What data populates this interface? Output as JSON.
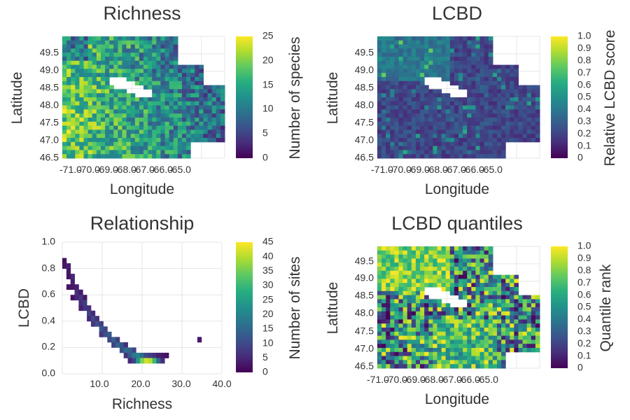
{
  "figure": {
    "panels": [
      {
        "title": "Richness",
        "xlabel": "Longitude",
        "ylabel": "Latitude",
        "x_ticks": [
          "-71.0",
          "-70.0",
          "-69.0",
          "-68.0",
          "-67.0",
          "-66.0",
          "-65.0"
        ],
        "y_ticks": [
          "46.5",
          "47.0",
          "47.5",
          "48.0",
          "48.5",
          "49.0",
          "49.5"
        ],
        "colorbar": {
          "label": "Number of species",
          "ticks": [
            "0",
            "5",
            "10",
            "15",
            "20",
            "25"
          ]
        }
      },
      {
        "title": "LCBD",
        "xlabel": "Longitude",
        "ylabel": "Latitude",
        "x_ticks": [
          "-71.0",
          "-70.0",
          "-69.0",
          "-68.0",
          "-67.0",
          "-66.0",
          "-65.0"
        ],
        "y_ticks": [
          "46.5",
          "47.0",
          "47.5",
          "48.0",
          "48.5",
          "49.0",
          "49.5"
        ],
        "colorbar": {
          "label": "Relative LCBD score",
          "ticks": [
            "0",
            "0.1",
            "0.2",
            "0.3",
            "0.4",
            "0.5",
            "0.6",
            "0.7",
            "0.8",
            "0.9",
            "1.0"
          ]
        }
      },
      {
        "title": "Relationship",
        "xlabel": "Richness",
        "ylabel": "LCBD",
        "x_ticks": [
          "10.0",
          "20.0",
          "30.0",
          "40.0"
        ],
        "y_ticks": [
          "0.0",
          "0.2",
          "0.4",
          "0.6",
          "0.8",
          "1.0"
        ],
        "colorbar": {
          "label": "Number of sites",
          "ticks": [
            "0",
            "5",
            "10",
            "15",
            "20",
            "25",
            "30",
            "35",
            "40",
            "45"
          ]
        }
      },
      {
        "title": "LCBD quantiles",
        "xlabel": "Longitude",
        "ylabel": "Latitude",
        "x_ticks": [
          "-71.0",
          "-70.0",
          "-69.0",
          "-68.0",
          "-67.0",
          "-66.0",
          "-65.0"
        ],
        "y_ticks": [
          "46.5",
          "47.0",
          "47.5",
          "48.0",
          "48.5",
          "49.0",
          "49.5"
        ],
        "colorbar": {
          "label": "Quantile rank",
          "ticks": [
            "0",
            "0.1",
            "0.2",
            "0.3",
            "0.4",
            "0.5",
            "0.6",
            "0.7",
            "0.8",
            "0.9",
            "1.0"
          ]
        }
      }
    ]
  },
  "chart_data": [
    {
      "type": "heatmap",
      "title": "Richness",
      "xlabel": "Longitude",
      "ylabel": "Latitude",
      "xlim": [
        -71.2,
        -64.2
      ],
      "ylim": [
        46.45,
        49.95
      ],
      "colormap": "viridis",
      "clim": [
        0,
        25
      ],
      "colorbar_label": "Number of species",
      "grid": true,
      "ncols": 38,
      "nrows": 30
    },
    {
      "type": "heatmap",
      "title": "LCBD",
      "xlabel": "Longitude",
      "ylabel": "Latitude",
      "xlim": [
        -71.2,
        -64.2
      ],
      "ylim": [
        46.45,
        49.95
      ],
      "colormap": "viridis",
      "clim": [
        0,
        1
      ],
      "colorbar_label": "Relative LCBD score",
      "grid": true,
      "ncols": 38,
      "nrows": 30
    },
    {
      "type": "heatmap",
      "title": "Relationship",
      "xlabel": "Richness",
      "ylabel": "LCBD",
      "xlim": [
        1,
        40
      ],
      "ylim": [
        0,
        1
      ],
      "colormap": "viridis",
      "clim": [
        0,
        45
      ],
      "colorbar_label": "Number of sites",
      "grid": true,
      "bins": [
        {
          "x": 1,
          "y": 0.86,
          "v": 2
        },
        {
          "x": 1,
          "y": 0.82,
          "v": 3
        },
        {
          "x": 2,
          "y": 0.82,
          "v": 4
        },
        {
          "x": 2,
          "y": 0.78,
          "v": 3
        },
        {
          "x": 2,
          "y": 0.74,
          "v": 2
        },
        {
          "x": 3,
          "y": 0.74,
          "v": 5
        },
        {
          "x": 3,
          "y": 0.7,
          "v": 4
        },
        {
          "x": 2,
          "y": 0.66,
          "v": 2
        },
        {
          "x": 3,
          "y": 0.66,
          "v": 3
        },
        {
          "x": 4,
          "y": 0.66,
          "v": 4
        },
        {
          "x": 4,
          "y": 0.62,
          "v": 6
        },
        {
          "x": 5,
          "y": 0.62,
          "v": 3
        },
        {
          "x": 3,
          "y": 0.58,
          "v": 2
        },
        {
          "x": 4,
          "y": 0.58,
          "v": 5
        },
        {
          "x": 5,
          "y": 0.58,
          "v": 7
        },
        {
          "x": 6,
          "y": 0.58,
          "v": 3
        },
        {
          "x": 5,
          "y": 0.54,
          "v": 6
        },
        {
          "x": 6,
          "y": 0.54,
          "v": 8
        },
        {
          "x": 5,
          "y": 0.5,
          "v": 4
        },
        {
          "x": 6,
          "y": 0.5,
          "v": 7
        },
        {
          "x": 7,
          "y": 0.5,
          "v": 6
        },
        {
          "x": 7,
          "y": 0.46,
          "v": 9
        },
        {
          "x": 8,
          "y": 0.46,
          "v": 5
        },
        {
          "x": 7,
          "y": 0.42,
          "v": 5
        },
        {
          "x": 8,
          "y": 0.42,
          "v": 10
        },
        {
          "x": 9,
          "y": 0.42,
          "v": 6
        },
        {
          "x": 8,
          "y": 0.38,
          "v": 7
        },
        {
          "x": 9,
          "y": 0.38,
          "v": 11
        },
        {
          "x": 10,
          "y": 0.38,
          "v": 8
        },
        {
          "x": 10,
          "y": 0.34,
          "v": 12
        },
        {
          "x": 11,
          "y": 0.34,
          "v": 9
        },
        {
          "x": 10,
          "y": 0.3,
          "v": 7
        },
        {
          "x": 11,
          "y": 0.3,
          "v": 11
        },
        {
          "x": 12,
          "y": 0.3,
          "v": 13
        },
        {
          "x": 12,
          "y": 0.26,
          "v": 10
        },
        {
          "x": 13,
          "y": 0.26,
          "v": 14
        },
        {
          "x": 14,
          "y": 0.26,
          "v": 8
        },
        {
          "x": 13,
          "y": 0.22,
          "v": 9
        },
        {
          "x": 14,
          "y": 0.22,
          "v": 15
        },
        {
          "x": 15,
          "y": 0.22,
          "v": 12
        },
        {
          "x": 16,
          "y": 0.22,
          "v": 6
        },
        {
          "x": 15,
          "y": 0.18,
          "v": 11
        },
        {
          "x": 16,
          "y": 0.18,
          "v": 16
        },
        {
          "x": 17,
          "y": 0.18,
          "v": 14
        },
        {
          "x": 18,
          "y": 0.18,
          "v": 9
        },
        {
          "x": 16,
          "y": 0.14,
          "v": 7
        },
        {
          "x": 17,
          "y": 0.14,
          "v": 12
        },
        {
          "x": 18,
          "y": 0.14,
          "v": 18
        },
        {
          "x": 19,
          "y": 0.14,
          "v": 20
        },
        {
          "x": 20,
          "y": 0.14,
          "v": 15
        },
        {
          "x": 21,
          "y": 0.14,
          "v": 10
        },
        {
          "x": 22,
          "y": 0.14,
          "v": 8
        },
        {
          "x": 23,
          "y": 0.14,
          "v": 6
        },
        {
          "x": 24,
          "y": 0.14,
          "v": 4
        },
        {
          "x": 25,
          "y": 0.14,
          "v": 3
        },
        {
          "x": 26,
          "y": 0.14,
          "v": 2
        },
        {
          "x": 17,
          "y": 0.1,
          "v": 5
        },
        {
          "x": 18,
          "y": 0.1,
          "v": 9
        },
        {
          "x": 19,
          "y": 0.1,
          "v": 24
        },
        {
          "x": 20,
          "y": 0.1,
          "v": 36
        },
        {
          "x": 21,
          "y": 0.1,
          "v": 42
        },
        {
          "x": 22,
          "y": 0.1,
          "v": 40
        },
        {
          "x": 23,
          "y": 0.1,
          "v": 30
        },
        {
          "x": 24,
          "y": 0.1,
          "v": 14
        },
        {
          "x": 25,
          "y": 0.1,
          "v": 6
        },
        {
          "x": 34,
          "y": 0.26,
          "v": 3
        }
      ]
    },
    {
      "type": "heatmap",
      "title": "LCBD quantiles",
      "xlabel": "Longitude",
      "ylabel": "Latitude",
      "xlim": [
        -71.2,
        -64.2
      ],
      "ylim": [
        46.45,
        49.95
      ],
      "colormap": "viridis",
      "clim": [
        0,
        1
      ],
      "colorbar_label": "Quantile rank",
      "grid": true,
      "ncols": 38,
      "nrows": 30
    }
  ]
}
